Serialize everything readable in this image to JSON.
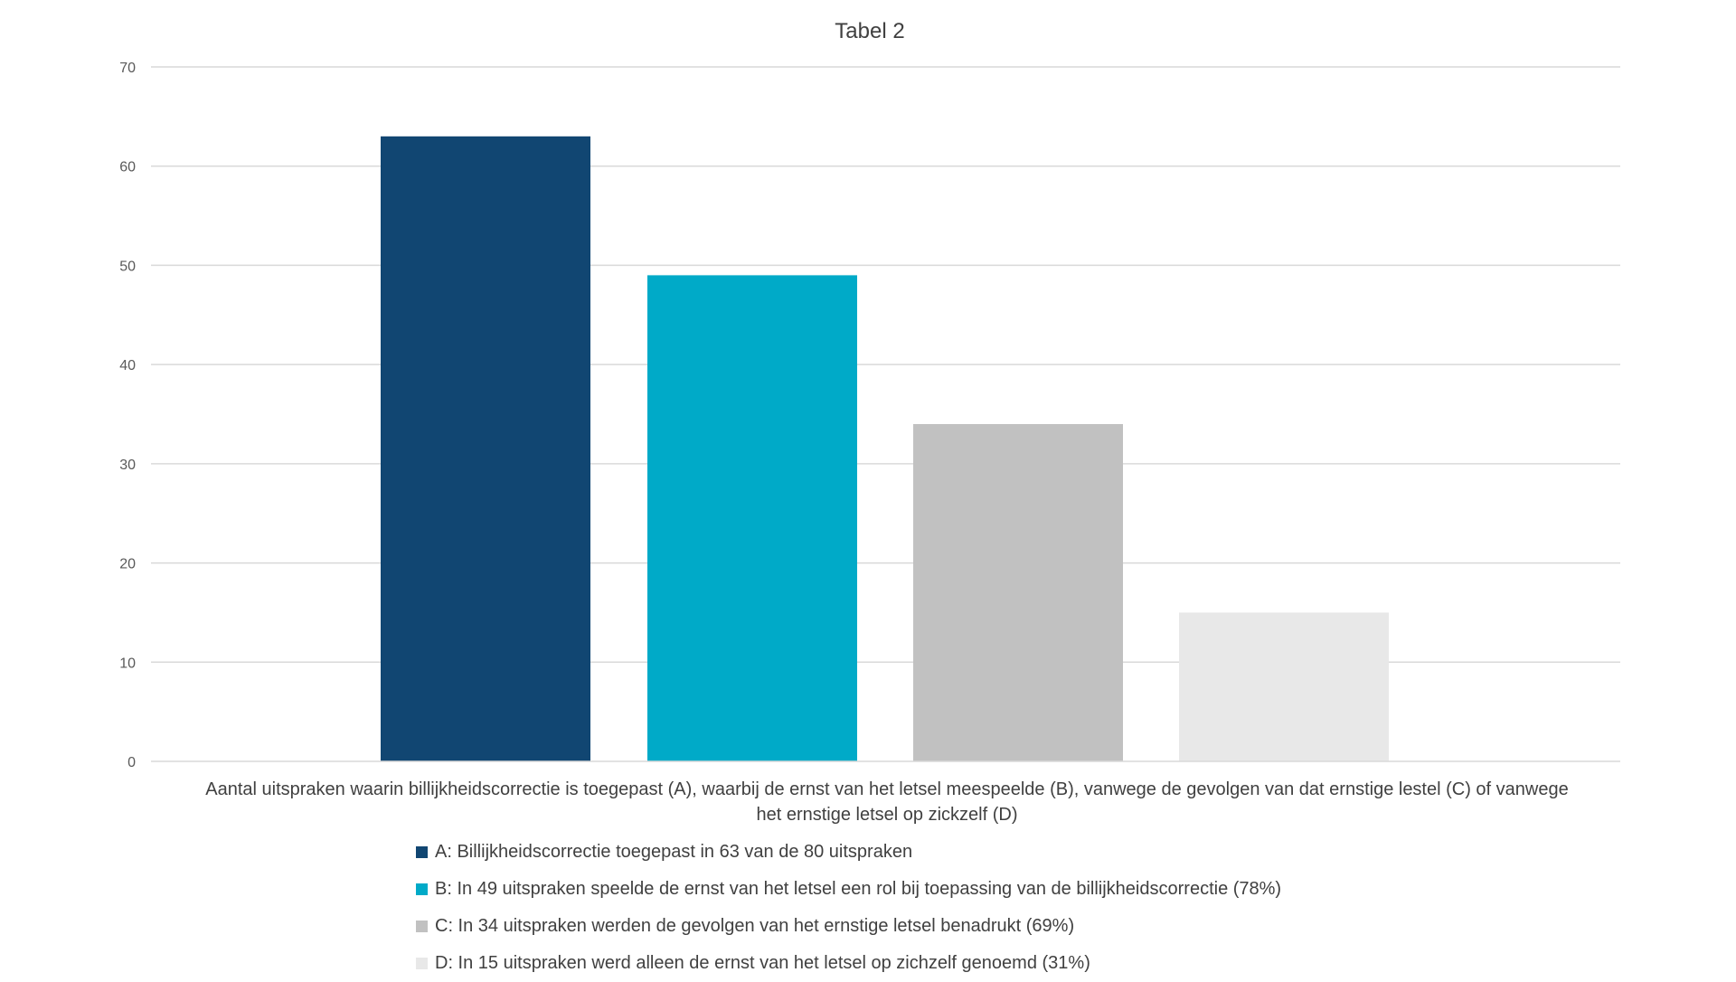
{
  "chart_data": {
    "type": "bar",
    "title": "Tabel 2",
    "xlabel": "Aantal uitspraken waarin billijkheidscorrectie is toegepast (A), waarbij de ernst van het letsel meespeelde (B), vanwege de gevolgen van dat ernstige lestel (C) of vanwege het ernstige letsel op zickzelf (D)",
    "xlabel_lines": [
      "Aantal uitspraken waarin billijkheidscorrectie is toegepast (A), waarbij de ernst van het letsel meespeelde (B), vanwege de gevolgen van dat ernstige lestel (C) of vanwege",
      "het ernstige letsel op zickzelf (D)"
    ],
    "ylabel": "",
    "ylim": [
      0,
      70
    ],
    "yticks": [
      0,
      10,
      20,
      30,
      40,
      50,
      60,
      70
    ],
    "grid": true,
    "legend_position": "bottom",
    "series": [
      {
        "name": "A: Billijkheidscorrectie toegepast in 63 van de 80 uitspraken",
        "values": [
          63
        ],
        "color": "#114672"
      },
      {
        "name": "B: In 49 uitspraken speelde de ernst van het letsel een rol bij toepassing van de billijkheidscorrectie (78%)",
        "values": [
          49
        ],
        "color": "#00AAC8"
      },
      {
        "name": "C: In 34 uitspraken werden de gevolgen van het ernstige letsel benadrukt (69%)",
        "values": [
          34
        ],
        "color": "#C1C1C1"
      },
      {
        "name": "D: In 15 uitspraken werd alleen de ernst van het letsel op zichzelf genoemd (31%)",
        "values": [
          15
        ],
        "color": "#E8E8E8"
      }
    ]
  }
}
